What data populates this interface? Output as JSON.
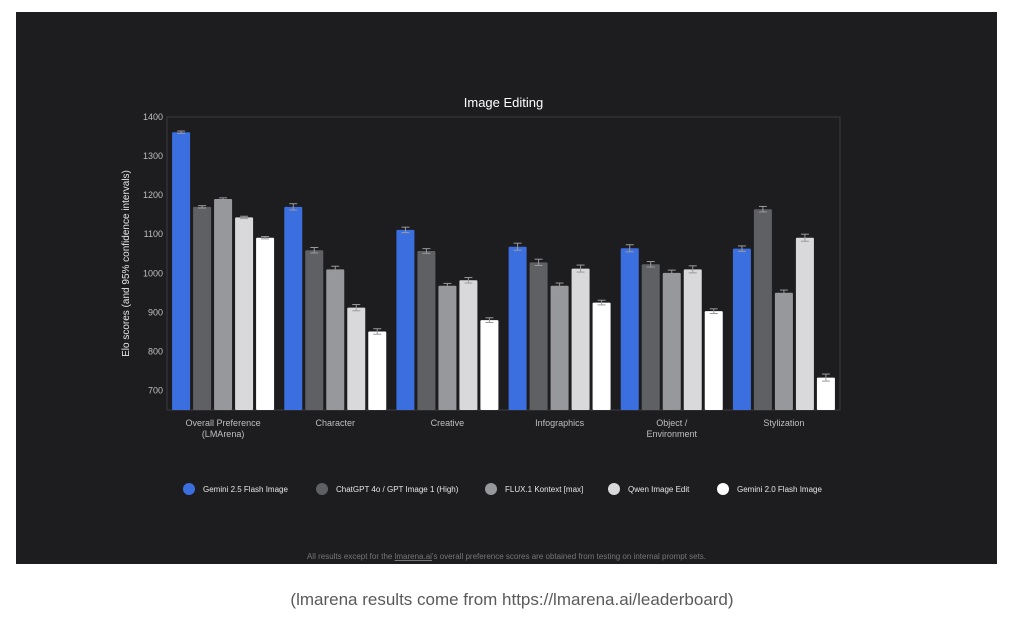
{
  "chart_data": {
    "type": "bar",
    "title": "Image Editing",
    "ylabel": "Elo scores (and 95% confidence intervals)",
    "xlabel": "",
    "ylim": [
      650,
      1400
    ],
    "yticks": [
      700,
      800,
      900,
      1000,
      1100,
      1200,
      1300,
      1400
    ],
    "categories": [
      [
        "Overall Preference",
        "(LMArena)"
      ],
      [
        "Character"
      ],
      [
        "Creative"
      ],
      [
        "Infographics"
      ],
      [
        "Object /",
        "Environment"
      ],
      [
        "Stylization"
      ]
    ],
    "series": [
      {
        "name": "Gemini 2.5 Flash Image",
        "color": "#3b6fe0",
        "values": [
          1361,
          1170,
          1111,
          1068,
          1064,
          1063
        ],
        "errors": [
          3,
          8,
          7,
          9,
          9,
          7
        ]
      },
      {
        "name": "ChatGPT 4o / GPT Image 1 (High)",
        "color": "#5f6063",
        "values": [
          1170,
          1059,
          1057,
          1028,
          1023,
          1164
        ],
        "errors": [
          3,
          7,
          6,
          8,
          7,
          7
        ]
      },
      {
        "name": "FLUX.1 Kontext [max]",
        "color": "#97989b",
        "values": [
          1190,
          1010,
          968,
          968,
          1001,
          950
        ],
        "errors": [
          3,
          8,
          6,
          7,
          7,
          7
        ]
      },
      {
        "name": "Qwen Image Edit",
        "color": "#d9d9db",
        "values": [
          1143,
          912,
          982,
          1012,
          1010,
          1091
        ],
        "errors": [
          3,
          8,
          7,
          9,
          9,
          9
        ]
      },
      {
        "name": "Gemini 2.0 Flash Image",
        "color": "#ffffff",
        "values": [
          1091,
          851,
          880,
          925,
          903,
          733
        ],
        "errors": [
          3,
          7,
          6,
          6,
          6,
          9
        ]
      }
    ],
    "grid": false,
    "legend_position": "bottom"
  },
  "footnote": {
    "before": "All results except for the ",
    "link": "lmarena.ai",
    "after": "'s overall preference scores are obtained from testing on internal prompt sets."
  },
  "caption": "(lmarena results come from https://lmarena.ai/leaderboard)"
}
